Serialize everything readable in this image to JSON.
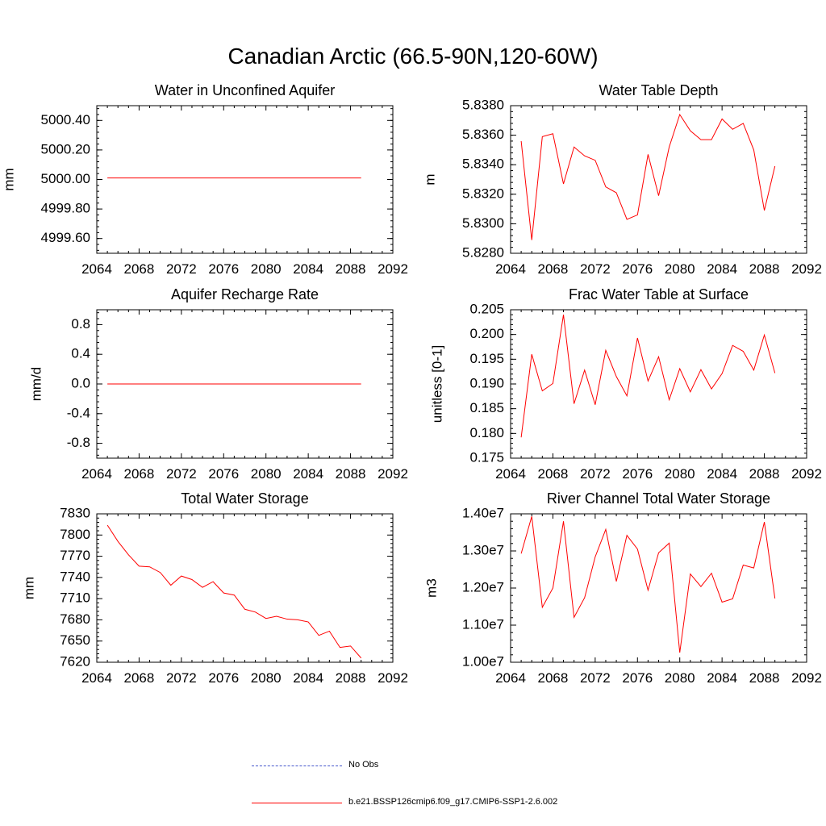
{
  "figure": {
    "title": "Canadian Arctic (66.5-90N,120-60W)",
    "legend": [
      {
        "label": "No Obs",
        "color": "#4455cc",
        "style": "dashed"
      },
      {
        "label": "b.e21.BSSP126cmip6.f09_g17.CMIP6-SSP1-2.6.002",
        "color": "#ff0000",
        "style": "solid"
      }
    ]
  },
  "chart_data": [
    {
      "type": "line",
      "title": "Water in Unconfined Aquifer",
      "ylabel": "mm",
      "xlim": [
        2064,
        2092
      ],
      "ylim": [
        4999.5,
        5000.5
      ],
      "xticks": [
        2064,
        2068,
        2072,
        2076,
        2080,
        2084,
        2088,
        2092
      ],
      "yticks": [
        4999.6,
        4999.8,
        5000.0,
        5000.2,
        5000.4
      ],
      "ytick_labels": [
        "4999.60",
        "4999.80",
        "5000.00",
        "5000.20",
        "5000.40"
      ],
      "series": [
        {
          "name": "b.e21.BSSP126cmip6.f09_g17.CMIP6-SSP1-2.6.002",
          "color": "#ff0000",
          "x": [
            2065,
            2066,
            2067,
            2068,
            2069,
            2070,
            2071,
            2072,
            2073,
            2074,
            2075,
            2076,
            2077,
            2078,
            2079,
            2080,
            2081,
            2082,
            2083,
            2084,
            2085,
            2086,
            2087,
            2088,
            2089
          ],
          "y": [
            5000.01,
            5000.01,
            5000.01,
            5000.01,
            5000.01,
            5000.01,
            5000.01,
            5000.01,
            5000.01,
            5000.01,
            5000.01,
            5000.01,
            5000.01,
            5000.01,
            5000.01,
            5000.01,
            5000.01,
            5000.01,
            5000.01,
            5000.01,
            5000.01,
            5000.01,
            5000.01,
            5000.01,
            5000.01
          ]
        }
      ]
    },
    {
      "type": "line",
      "title": "Water Table Depth",
      "ylabel": "m",
      "xlim": [
        2064,
        2092
      ],
      "ylim": [
        5.828,
        5.838
      ],
      "xticks": [
        2064,
        2068,
        2072,
        2076,
        2080,
        2084,
        2088,
        2092
      ],
      "yticks": [
        5.828,
        5.83,
        5.832,
        5.834,
        5.836,
        5.838
      ],
      "ytick_labels": [
        "5.8280",
        "5.8300",
        "5.8320",
        "5.8340",
        "5.8360",
        "5.8380"
      ],
      "series": [
        {
          "name": "b.e21.BSSP126cmip6.f09_g17.CMIP6-SSP1-2.6.002",
          "color": "#ff0000",
          "x": [
            2065,
            2066,
            2067,
            2068,
            2069,
            2070,
            2071,
            2072,
            2073,
            2074,
            2075,
            2076,
            2077,
            2078,
            2079,
            2080,
            2081,
            2082,
            2083,
            2084,
            2085,
            2086,
            2087,
            2088,
            2089
          ],
          "y": [
            5.8356,
            5.8289,
            5.8359,
            5.8361,
            5.8327,
            5.8352,
            5.8346,
            5.8343,
            5.8325,
            5.8321,
            5.8303,
            5.8306,
            5.8347,
            5.8319,
            5.8352,
            5.8374,
            5.8363,
            5.8357,
            5.8357,
            5.8371,
            5.8364,
            5.8368,
            5.835,
            5.8309,
            5.8339
          ]
        }
      ]
    },
    {
      "type": "line",
      "title": "Aquifer Recharge Rate",
      "ylabel": "mm/d",
      "xlim": [
        2064,
        2092
      ],
      "ylim": [
        -1.0,
        1.0
      ],
      "xticks": [
        2064,
        2068,
        2072,
        2076,
        2080,
        2084,
        2088,
        2092
      ],
      "yticks": [
        -0.8,
        -0.4,
        0.0,
        0.4,
        0.8
      ],
      "ytick_labels": [
        "-0.8",
        "-0.4",
        "0.0",
        "0.4",
        "0.8"
      ],
      "series": [
        {
          "name": "b.e21.BSSP126cmip6.f09_g17.CMIP6-SSP1-2.6.002",
          "color": "#ff0000",
          "x": [
            2065,
            2066,
            2067,
            2068,
            2069,
            2070,
            2071,
            2072,
            2073,
            2074,
            2075,
            2076,
            2077,
            2078,
            2079,
            2080,
            2081,
            2082,
            2083,
            2084,
            2085,
            2086,
            2087,
            2088,
            2089
          ],
          "y": [
            0,
            0,
            0,
            0,
            0,
            0,
            0,
            0,
            0,
            0,
            0,
            0,
            0,
            0,
            0,
            0,
            0,
            0,
            0,
            0,
            0,
            0,
            0,
            0,
            0
          ]
        }
      ]
    },
    {
      "type": "line",
      "title": "Frac Water Table at Surface",
      "ylabel": "unitless [0-1]",
      "xlim": [
        2064,
        2092
      ],
      "ylim": [
        0.175,
        0.205
      ],
      "xticks": [
        2064,
        2068,
        2072,
        2076,
        2080,
        2084,
        2088,
        2092
      ],
      "yticks": [
        0.175,
        0.18,
        0.185,
        0.19,
        0.195,
        0.2,
        0.205
      ],
      "ytick_labels": [
        "0.175",
        "0.180",
        "0.185",
        "0.190",
        "0.195",
        "0.200",
        "0.205"
      ],
      "series": [
        {
          "name": "b.e21.BSSP126cmip6.f09_g17.CMIP6-SSP1-2.6.002",
          "color": "#ff0000",
          "x": [
            2065,
            2066,
            2067,
            2068,
            2069,
            2070,
            2071,
            2072,
            2073,
            2074,
            2075,
            2076,
            2077,
            2078,
            2079,
            2080,
            2081,
            2082,
            2083,
            2084,
            2085,
            2086,
            2087,
            2088,
            2089
          ],
          "y": [
            0.1792,
            0.196,
            0.1886,
            0.1901,
            0.204,
            0.186,
            0.1928,
            0.1858,
            0.1968,
            0.1915,
            0.1876,
            0.1993,
            0.1906,
            0.1955,
            0.1868,
            0.1931,
            0.1884,
            0.1929,
            0.189,
            0.1921,
            0.1978,
            0.1966,
            0.1928,
            0.1999,
            0.1922
          ]
        }
      ]
    },
    {
      "type": "line",
      "title": "Total Water Storage",
      "ylabel": "mm",
      "xlim": [
        2064,
        2092
      ],
      "ylim": [
        7620,
        7830
      ],
      "xticks": [
        2064,
        2068,
        2072,
        2076,
        2080,
        2084,
        2088,
        2092
      ],
      "yticks": [
        7620,
        7650,
        7680,
        7710,
        7740,
        7770,
        7800,
        7830
      ],
      "ytick_labels": [
        "7620",
        "7650",
        "7680",
        "7710",
        "7740",
        "7770",
        "7800",
        "7830"
      ],
      "series": [
        {
          "name": "b.e21.BSSP126cmip6.f09_g17.CMIP6-SSP1-2.6.002",
          "color": "#ff0000",
          "x": [
            2065,
            2066,
            2067,
            2068,
            2069,
            2070,
            2071,
            2072,
            2073,
            2074,
            2075,
            2076,
            2077,
            2078,
            2079,
            2080,
            2081,
            2082,
            2083,
            2084,
            2085,
            2086,
            2087,
            2088,
            2089
          ],
          "y": [
            7814,
            7791,
            7772,
            7756,
            7755,
            7747,
            7729,
            7742,
            7737,
            7726,
            7734,
            7718,
            7715,
            7695,
            7691,
            7682,
            7685,
            7681,
            7680,
            7677,
            7658,
            7664,
            7641,
            7643,
            7626
          ]
        }
      ]
    },
    {
      "type": "line",
      "title": "River Channel Total Water Storage",
      "ylabel": "m3",
      "xlim": [
        2064,
        2092
      ],
      "ylim": [
        10000000,
        14000000
      ],
      "xticks": [
        2064,
        2068,
        2072,
        2076,
        2080,
        2084,
        2088,
        2092
      ],
      "yticks": [
        10000000,
        11000000,
        12000000,
        13000000,
        14000000
      ],
      "ytick_labels": [
        "1.00e7",
        "1.10e7",
        "1.20e7",
        "1.30e7",
        "1.40e7"
      ],
      "series": [
        {
          "name": "b.e21.BSSP126cmip6.f09_g17.CMIP6-SSP1-2.6.002",
          "color": "#ff0000",
          "x": [
            2065,
            2066,
            2067,
            2068,
            2069,
            2070,
            2071,
            2072,
            2073,
            2074,
            2075,
            2076,
            2077,
            2078,
            2079,
            2080,
            2081,
            2082,
            2083,
            2084,
            2085,
            2086,
            2087,
            2088,
            2089
          ],
          "y": [
            12930000,
            13930000,
            11480000,
            12000000,
            13800000,
            11210000,
            11740000,
            12840000,
            13580000,
            12180000,
            13420000,
            13050000,
            11940000,
            12950000,
            13210000,
            10260000,
            12380000,
            12040000,
            12400000,
            11620000,
            11710000,
            12620000,
            12540000,
            13780000,
            11720000
          ]
        }
      ]
    }
  ]
}
